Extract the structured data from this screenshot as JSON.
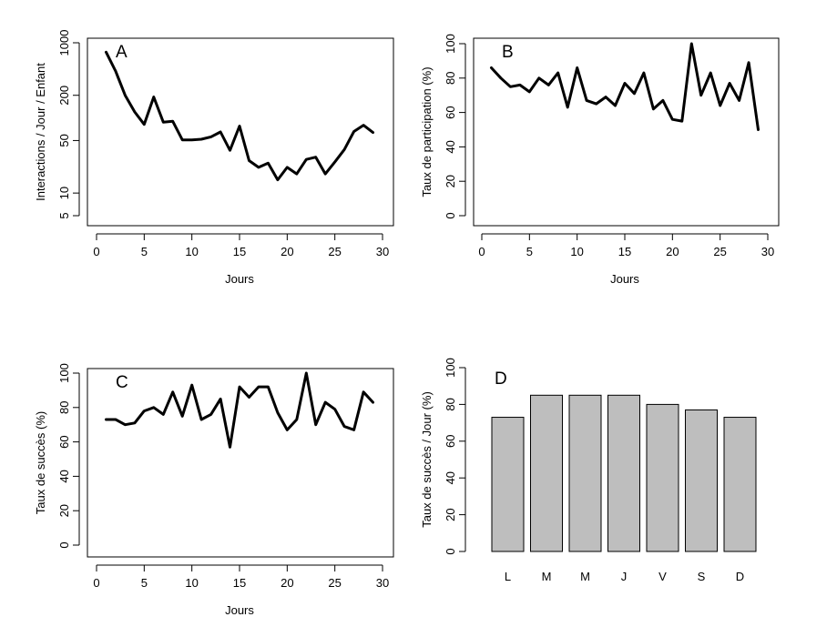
{
  "chart_data": [
    {
      "id": "A",
      "type": "line",
      "panel_label": "A",
      "xlabel": "Jours",
      "ylabel": "Interactions / Jour / Enfant",
      "yscale": "log",
      "xlim": [
        0,
        30
      ],
      "ylim": [
        4,
        1100
      ],
      "xticks": [
        0,
        5,
        10,
        15,
        20,
        25,
        30
      ],
      "yticks": [
        5,
        10,
        50,
        200,
        1000
      ],
      "grid": false,
      "series": [
        {
          "color": "#000000",
          "x": [
            1,
            2,
            3,
            4,
            5,
            6,
            7,
            8,
            9,
            10,
            11,
            12,
            13,
            14,
            15,
            16,
            17,
            18,
            19,
            20,
            21,
            22,
            23,
            24,
            25,
            26,
            27,
            28,
            29
          ],
          "values": [
            750,
            420,
            200,
            120,
            82,
            190,
            88,
            90,
            51,
            51,
            52,
            56,
            65,
            37,
            78,
            27,
            22,
            25,
            15,
            22,
            18,
            28,
            30,
            18,
            26,
            38,
            66,
            80,
            64
          ]
        }
      ]
    },
    {
      "id": "B",
      "type": "line",
      "panel_label": "B",
      "xlabel": "Jours",
      "ylabel": "Taux de participation (%)",
      "xlim": [
        0,
        30
      ],
      "ylim": [
        0,
        100
      ],
      "xticks": [
        0,
        5,
        10,
        15,
        20,
        25,
        30
      ],
      "yticks": [
        0,
        20,
        40,
        60,
        80,
        100
      ],
      "grid": false,
      "series": [
        {
          "color": "#000000",
          "x": [
            1,
            2,
            3,
            4,
            5,
            6,
            7,
            8,
            9,
            10,
            11,
            12,
            13,
            14,
            15,
            16,
            17,
            18,
            19,
            20,
            21,
            22,
            23,
            24,
            25,
            26,
            27,
            28,
            29
          ],
          "values": [
            86,
            80,
            75,
            76,
            72,
            80,
            76,
            83,
            63,
            86,
            67,
            65,
            69,
            64,
            77,
            71,
            83,
            62,
            67,
            56,
            55,
            100,
            70,
            83,
            64,
            77,
            67,
            89,
            50
          ]
        }
      ]
    },
    {
      "id": "C",
      "type": "line",
      "panel_label": "C",
      "xlabel": "Jours",
      "ylabel": "Taux de succès (%)",
      "xlim": [
        0,
        30
      ],
      "ylim": [
        0,
        100
      ],
      "xticks": [
        0,
        5,
        10,
        15,
        20,
        25,
        30
      ],
      "yticks": [
        0,
        20,
        40,
        60,
        80,
        100
      ],
      "grid": false,
      "series": [
        {
          "color": "#000000",
          "x": [
            1,
            2,
            3,
            4,
            5,
            6,
            7,
            8,
            9,
            10,
            11,
            12,
            13,
            14,
            15,
            16,
            17,
            18,
            19,
            20,
            21,
            22,
            23,
            24,
            25,
            26,
            27,
            28,
            29
          ],
          "values": [
            73,
            73,
            70,
            71,
            78,
            80,
            76,
            89,
            75,
            93,
            73,
            76,
            85,
            57,
            92,
            86,
            92,
            92,
            77,
            67,
            73,
            100,
            70,
            83,
            79,
            69,
            67,
            89,
            83
          ]
        }
      ]
    },
    {
      "id": "D",
      "type": "bar",
      "panel_label": "D",
      "xlabel": "",
      "ylabel": "Taux de succès / Jour (%)",
      "ylim": [
        0,
        100
      ],
      "yticks": [
        0,
        20,
        40,
        60,
        80,
        100
      ],
      "grid": false,
      "categories": [
        "L",
        "M",
        "M",
        "J",
        "V",
        "S",
        "D"
      ],
      "values": [
        73,
        85,
        85,
        85,
        80,
        77,
        73
      ],
      "bar_color": "#bebebe"
    }
  ]
}
